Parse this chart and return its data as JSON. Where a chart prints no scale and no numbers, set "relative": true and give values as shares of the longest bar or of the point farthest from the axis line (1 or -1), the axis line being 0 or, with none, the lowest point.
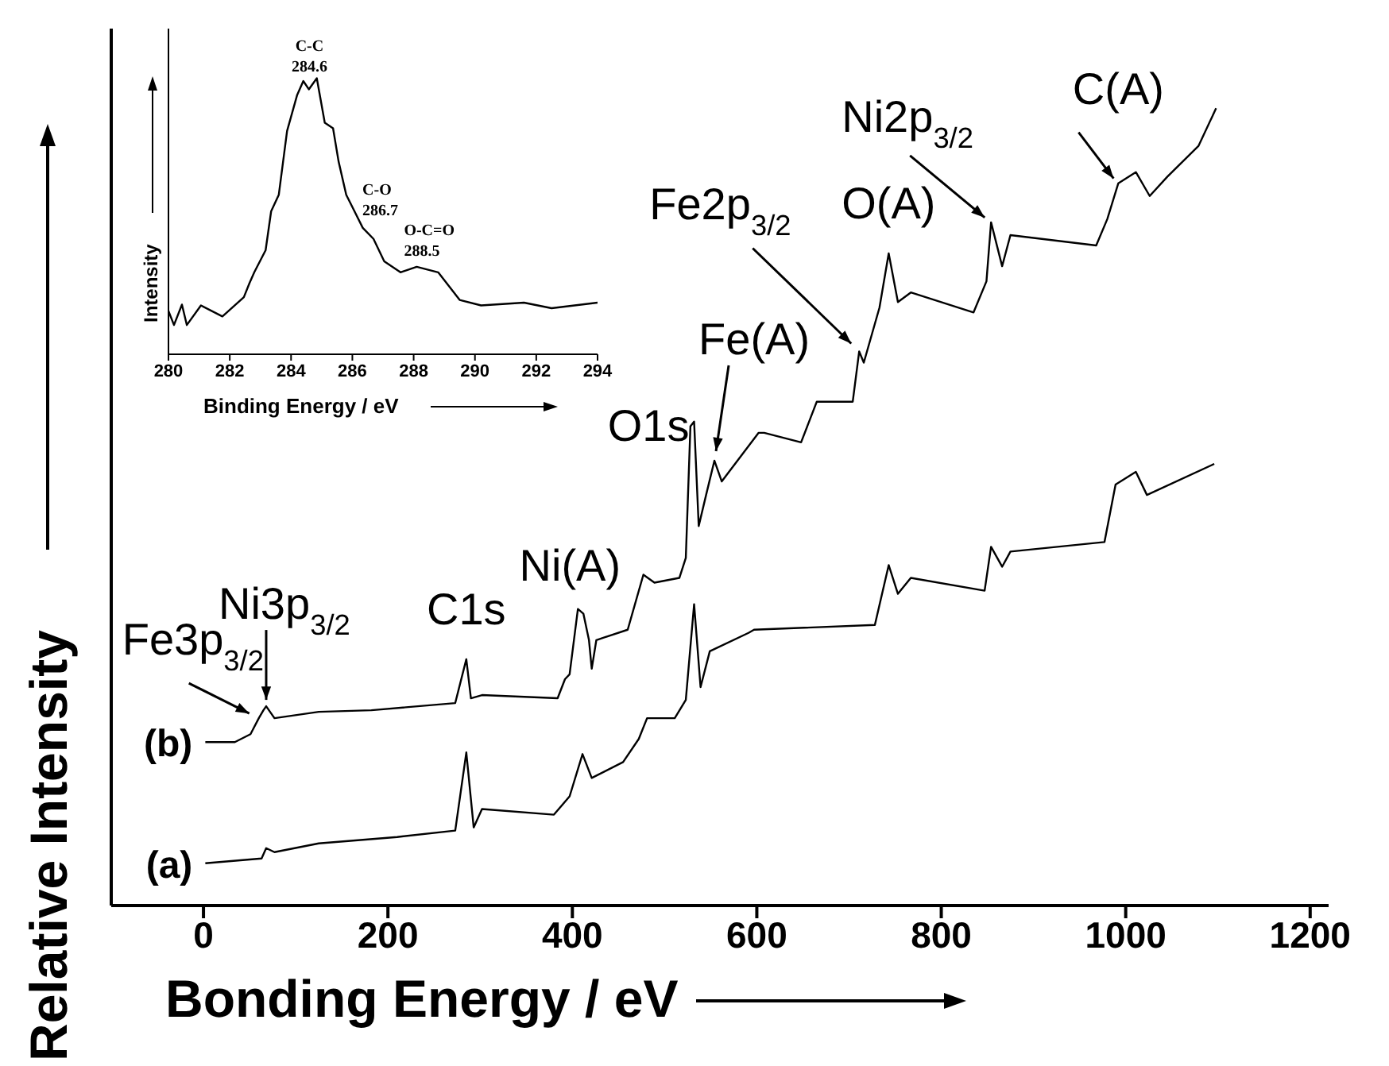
{
  "chart_data": [
    {
      "type": "line",
      "xlabel": "Bonding Energy / eV",
      "ylabel": "Relative Intensity",
      "relative": true,
      "xlim": [
        -100,
        1220
      ],
      "xticks": [
        0,
        200,
        400,
        600,
        800,
        1000,
        1200
      ],
      "series": [
        {
          "name": "(a)",
          "color": "#000000",
          "x": [
            2,
            63,
            68,
            77,
            125,
            210,
            273,
            285,
            293,
            302,
            380,
            397,
            411,
            421,
            455,
            472,
            481,
            511,
            523,
            532,
            539,
            549,
            591,
            597,
            728,
            743,
            753,
            767,
            847,
            854,
            866,
            875,
            977,
            989,
            1011,
            1023,
            1096
          ],
          "values": [
            0.053,
            0.059,
            0.072,
            0.067,
            0.078,
            0.086,
            0.094,
            0.192,
            0.098,
            0.121,
            0.114,
            0.137,
            0.19,
            0.16,
            0.18,
            0.209,
            0.235,
            0.235,
            0.258,
            0.378,
            0.274,
            0.319,
            0.342,
            0.346,
            0.352,
            0.427,
            0.391,
            0.411,
            0.395,
            0.45,
            0.425,
            0.444,
            0.456,
            0.528,
            0.544,
            0.515,
            0.554
          ]
        },
        {
          "name": "(b)",
          "color": "#000000",
          "x": [
            2,
            34,
            51,
            60,
            65,
            68,
            77,
            125,
            182,
            273,
            285,
            290,
            302,
            384,
            392,
            397,
            406,
            412,
            418,
            421,
            426,
            460,
            477,
            489,
            516,
            523,
            528,
            532,
            537,
            545,
            554,
            562,
            602,
            608,
            648,
            665,
            704,
            711,
            716,
            733,
            743,
            753,
            767,
            835,
            849,
            854,
            866,
            875,
            968,
            980,
            992,
            1011,
            1026,
            1045,
            1079,
            1098
          ],
          "values": [
            0.205,
            0.205,
            0.215,
            0.235,
            0.245,
            0.25,
            0.235,
            0.243,
            0.245,
            0.254,
            0.309,
            0.26,
            0.264,
            0.26,
            0.284,
            0.29,
            0.372,
            0.366,
            0.333,
            0.297,
            0.333,
            0.346,
            0.415,
            0.405,
            0.411,
            0.436,
            0.601,
            0.607,
            0.476,
            0.515,
            0.558,
            0.532,
            0.593,
            0.593,
            0.581,
            0.632,
            0.632,
            0.695,
            0.681,
            0.75,
            0.818,
            0.757,
            0.769,
            0.744,
            0.783,
            0.857,
            0.802,
            0.841,
            0.828,
            0.861,
            0.906,
            0.92,
            0.89,
            0.914,
            0.953,
            1
          ]
        }
      ],
      "annotations": [
        {
          "text": "Fe3p$_{3/2}$",
          "x": 60,
          "y": 0.235
        },
        {
          "text": "Ni3p$_{3/2}$",
          "x": 68,
          "y": 0.25
        },
        {
          "text": "C1s",
          "x": 285,
          "y": 0.309
        },
        {
          "text": "Ni(A)",
          "x": 406,
          "y": 0.372
        },
        {
          "text": "O1s",
          "x": 532,
          "y": 0.607
        },
        {
          "text": "Fe(A)",
          "x": 554,
          "y": 0.558
        },
        {
          "text": "Fe2p$_{3/2}$",
          "x": 711,
          "y": 0.695
        },
        {
          "text": "O(A)",
          "x": 743,
          "y": 0.818
        },
        {
          "text": "Ni2p$_{3/2}$",
          "x": 854,
          "y": 0.857
        },
        {
          "text": "C(A)",
          "x": 992,
          "y": 0.906
        }
      ]
    },
    {
      "type": "line",
      "xlabel": "Binding Energy / eV",
      "ylabel": "Intensity",
      "relative": true,
      "xlim": [
        280,
        294
      ],
      "xticks": [
        280,
        282,
        284,
        286,
        288,
        290,
        292,
        294
      ],
      "color": "#000000",
      "x": [
        280,
        280.18,
        280.44,
        280.6,
        281.06,
        281.76,
        282.46,
        282.64,
        282.8,
        283.17,
        283.35,
        283.6,
        283.87,
        284.2,
        284.4,
        284.58,
        284.84,
        285.1,
        285.37,
        285.55,
        285.8,
        286.07,
        286.34,
        286.69,
        287.04,
        287.57,
        288.1,
        288.8,
        289.5,
        290.2,
        291.6,
        292.5,
        294
      ],
      "values": [
        0.157,
        0.106,
        0.18,
        0.106,
        0.177,
        0.137,
        0.207,
        0.257,
        0.297,
        0.377,
        0.518,
        0.578,
        0.809,
        0.94,
        0.99,
        0.96,
        1,
        0.839,
        0.819,
        0.699,
        0.578,
        0.518,
        0.458,
        0.418,
        0.337,
        0.297,
        0.317,
        0.297,
        0.197,
        0.177,
        0.187,
        0.167,
        0.187
      ],
      "annotations": [
        {
          "text": "C-C\n284.6",
          "x": 284.6,
          "y": 0.96
        },
        {
          "text": "C-O\n286.7",
          "x": 286.69,
          "y": 0.418
        },
        {
          "text": "O-C=O\n288.5",
          "x": 288.1,
          "y": 0.317
        }
      ]
    }
  ]
}
